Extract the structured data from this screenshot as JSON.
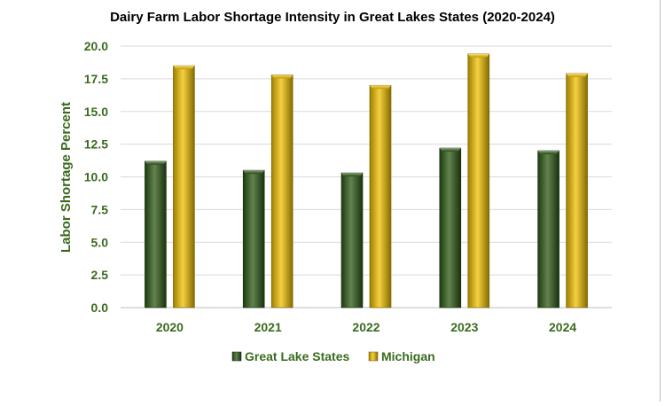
{
  "chart_data": {
    "type": "bar",
    "title": "Dairy Farm Labor Shortage Intensity in Great Lakes States (2020-2024)",
    "xlabel": "",
    "ylabel": "Labor Shortage Percent",
    "categories": [
      "2020",
      "2021",
      "2022",
      "2023",
      "2024"
    ],
    "series": [
      {
        "name": "Great Lake States",
        "values": [
          11.2,
          10.5,
          10.3,
          12.2,
          12.0
        ],
        "color": "#2d5a16"
      },
      {
        "name": "Michigan",
        "values": [
          18.5,
          17.8,
          17.0,
          19.4,
          17.9
        ],
        "color": "#f2c200"
      }
    ],
    "ylim": [
      0,
      20
    ],
    "yticks": [
      "0.0",
      "2.5",
      "5.0",
      "7.5",
      "10.0",
      "12.5",
      "15.0",
      "17.5",
      "20.0"
    ],
    "grid": true,
    "legend": "bottom",
    "text_color": "#3a6b1e"
  }
}
